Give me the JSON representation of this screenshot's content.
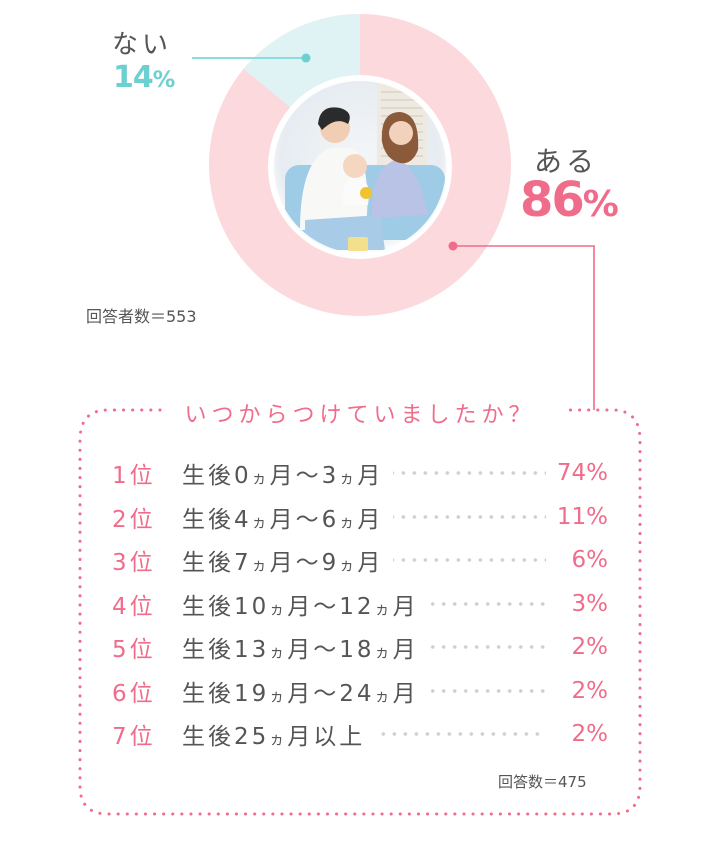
{
  "chart_data": [
    {
      "type": "pie",
      "title": "",
      "categories": [
        "ない",
        "ある"
      ],
      "values": [
        14,
        86
      ],
      "colors": [
        "#dff3f4",
        "#fbd9dc"
      ],
      "respondents_label": "回答者数＝553"
    },
    {
      "type": "table",
      "title": "いつからつけていましたか？",
      "columns": [
        "rank",
        "period",
        "percent"
      ],
      "rows": [
        [
          "1位",
          "生後0ヵ月～3ヵ月",
          74
        ],
        [
          "2位",
          "生後4ヵ月～6ヵ月",
          11
        ],
        [
          "3位",
          "生後7ヵ月～9ヵ月",
          6
        ],
        [
          "4位",
          "生後10ヵ月～12ヵ月",
          3
        ],
        [
          "5位",
          "生後13ヵ月～18ヵ月",
          2
        ],
        [
          "6位",
          "生後19ヵ月～24ヵ月",
          2
        ],
        [
          "7位",
          "生後25ヵ月以上",
          2
        ]
      ],
      "answers_label": "回答数＝475"
    }
  ],
  "pie": {
    "no": {
      "label": "ない",
      "value": "14",
      "unit": "%"
    },
    "yes": {
      "label": "ある",
      "value": "86",
      "unit": "%"
    },
    "center_image": "family-photo",
    "respondents": "回答者数＝553"
  },
  "ranking": {
    "question": "いつからつけていましたか？",
    "items": [
      {
        "rank": "1位",
        "pre": "生後0",
        "ka1": "ヵ",
        "mid": "月～3",
        "ka2": "ヵ",
        "post": "月",
        "pct": "74%"
      },
      {
        "rank": "2位",
        "pre": "生後4",
        "ka1": "ヵ",
        "mid": "月～6",
        "ka2": "ヵ",
        "post": "月",
        "pct": "11%"
      },
      {
        "rank": "3位",
        "pre": "生後7",
        "ka1": "ヵ",
        "mid": "月～9",
        "ka2": "ヵ",
        "post": "月",
        "pct": "6%"
      },
      {
        "rank": "4位",
        "pre": "生後10",
        "ka1": "ヵ",
        "mid": "月～12",
        "ka2": "ヵ",
        "post": "月",
        "pct": "3%"
      },
      {
        "rank": "5位",
        "pre": "生後13",
        "ka1": "ヵ",
        "mid": "月～18",
        "ka2": "ヵ",
        "post": "月",
        "pct": "2%"
      },
      {
        "rank": "6位",
        "pre": "生後19",
        "ka1": "ヵ",
        "mid": "月～24",
        "ka2": "ヵ",
        "post": "月",
        "pct": "2%"
      },
      {
        "rank": "7位",
        "pre": "生後25",
        "ka1": "ヵ",
        "mid": "月以上",
        "ka2": "",
        "post": "",
        "pct": "2%"
      }
    ],
    "answers": "回答数＝475"
  },
  "colors": {
    "pink": "#f06c8b",
    "cyan": "#6ccfd0",
    "pie_pink": "#fbd9dc",
    "pie_cyan": "#dff3f4",
    "text": "#555555"
  }
}
